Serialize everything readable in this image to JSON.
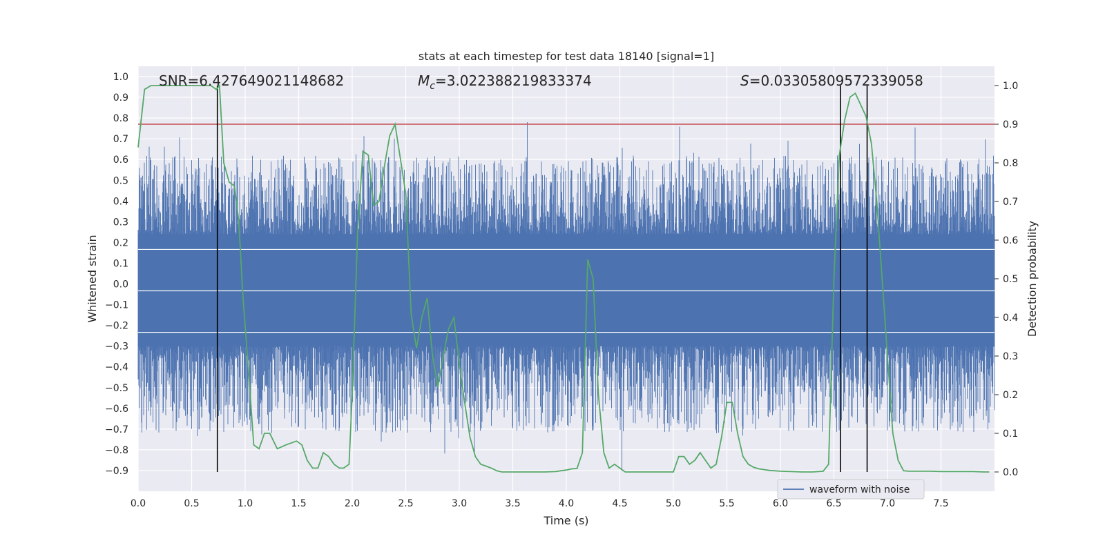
{
  "chart_data": {
    "type": "line",
    "title": "stats at each timestep for test data 18140 [signal=1]",
    "xlabel": "Time (s)",
    "ylabel": "Whitened strain",
    "y2label": "Detection probability",
    "xlim": [
      0.0,
      8.0
    ],
    "ylim": [
      -1.0,
      1.05
    ],
    "y2lim": [
      -0.05,
      1.05
    ],
    "grid": true,
    "legend_position": "bottom-right",
    "x_ticks": [
      0.0,
      0.5,
      1.0,
      1.5,
      2.0,
      2.5,
      3.0,
      3.5,
      4.0,
      4.5,
      5.0,
      5.5,
      6.0,
      6.5,
      7.0,
      7.5
    ],
    "x_tick_labels": [
      "0.0",
      "0.5",
      "1.0",
      "1.5",
      "2.0",
      "2.5",
      "3.0",
      "3.5",
      "4.0",
      "4.5",
      "5.0",
      "5.5",
      "6.0",
      "6.5",
      "7.0",
      "7.5"
    ],
    "y_ticks": [
      -0.9,
      -0.8,
      -0.7,
      -0.6,
      -0.5,
      -0.4,
      -0.3,
      -0.2,
      -0.1,
      0.0,
      0.1,
      0.2,
      0.3,
      0.4,
      0.5,
      0.6,
      0.7,
      0.8,
      0.9,
      1.0
    ],
    "y_tick_labels": [
      "−0.9",
      "−0.8",
      "−0.7",
      "−0.6",
      "−0.5",
      "−0.4",
      "−0.3",
      "−0.2",
      "−0.1",
      "0.0",
      "0.1",
      "0.2",
      "0.3",
      "0.4",
      "0.5",
      "0.6",
      "0.7",
      "0.8",
      "0.9",
      "1.0"
    ],
    "y2_ticks": [
      0.0,
      0.1,
      0.2,
      0.3,
      0.4,
      0.5,
      0.6,
      0.7,
      0.8,
      0.9,
      1.0
    ],
    "y2_tick_labels": [
      "0.0",
      "0.1",
      "0.2",
      "0.3",
      "0.4",
      "0.5",
      "0.6",
      "0.7",
      "0.8",
      "0.9",
      "1.0"
    ],
    "annotations": {
      "snr": "SNR=6.427649021148682",
      "mc_symbol": "M",
      "mc_sub": "c",
      "mc_value": "=3.022388219833374",
      "s_symbol": "S",
      "s_value": "=0.03305809572339058"
    },
    "threshold": {
      "value": 0.9,
      "axis": "y2",
      "color": "#c44e52"
    },
    "vertical_lines": [
      0.74,
      6.56,
      6.81
    ],
    "series": [
      {
        "name": "waveform with noise",
        "axis": "y",
        "color": "#4c72b0",
        "description_only": false,
        "sample_rate": 2048,
        "duration": 8.0,
        "amplitude_envelope": [
          0.45,
          -0.55
        ]
      },
      {
        "axis": "y2",
        "color": "#55a868",
        "x": [
          0.0,
          0.06,
          0.12,
          0.18,
          0.25,
          0.35,
          0.45,
          0.55,
          0.62,
          0.68,
          0.73,
          0.76,
          0.8,
          0.85,
          0.9,
          0.94,
          0.98,
          1.03,
          1.08,
          1.13,
          1.18,
          1.23,
          1.3,
          1.38,
          1.48,
          1.53,
          1.58,
          1.63,
          1.68,
          1.73,
          1.78,
          1.83,
          1.88,
          1.92,
          1.97,
          2.0,
          2.05,
          2.1,
          2.15,
          2.2,
          2.25,
          2.3,
          2.35,
          2.4,
          2.45,
          2.5,
          2.55,
          2.6,
          2.65,
          2.7,
          2.75,
          2.8,
          2.85,
          2.9,
          2.95,
          3.0,
          3.05,
          3.1,
          3.15,
          3.2,
          3.25,
          3.3,
          3.35,
          3.4,
          3.5,
          3.6,
          3.7,
          3.8,
          3.9,
          4.0,
          4.05,
          4.1,
          4.15,
          4.2,
          4.25,
          4.3,
          4.35,
          4.4,
          4.45,
          4.5,
          4.55,
          4.6,
          4.7,
          4.8,
          4.9,
          5.0,
          5.05,
          5.1,
          5.15,
          5.2,
          5.25,
          5.3,
          5.35,
          5.4,
          5.45,
          5.5,
          5.55,
          5.6,
          5.65,
          5.7,
          5.75,
          5.8,
          5.9,
          6.0,
          6.1,
          6.2,
          6.3,
          6.4,
          6.45,
          6.5,
          6.55,
          6.6,
          6.65,
          6.7,
          6.75,
          6.8,
          6.85,
          6.9,
          6.95,
          7.0,
          7.05,
          7.1,
          7.15,
          7.2,
          7.3,
          7.4,
          7.5,
          7.6,
          7.7,
          7.8,
          7.9,
          7.95
        ],
        "values": [
          0.84,
          0.99,
          1.0,
          1.0,
          1.0,
          1.0,
          1.0,
          1.0,
          1.0,
          1.0,
          0.99,
          1.0,
          0.8,
          0.75,
          0.74,
          0.65,
          0.45,
          0.27,
          0.07,
          0.06,
          0.1,
          0.1,
          0.06,
          0.07,
          0.08,
          0.07,
          0.03,
          0.01,
          0.01,
          0.05,
          0.04,
          0.02,
          0.01,
          0.01,
          0.02,
          0.2,
          0.62,
          0.83,
          0.82,
          0.69,
          0.7,
          0.79,
          0.87,
          0.9,
          0.81,
          0.72,
          0.41,
          0.32,
          0.4,
          0.45,
          0.3,
          0.22,
          0.3,
          0.37,
          0.4,
          0.28,
          0.18,
          0.09,
          0.04,
          0.02,
          0.015,
          0.01,
          0.003,
          0.0,
          0.0,
          0.0,
          0.0,
          0.0,
          0.001,
          0.005,
          0.008,
          0.009,
          0.05,
          0.55,
          0.5,
          0.2,
          0.05,
          0.01,
          0.02,
          0.01,
          0.0,
          0.0,
          0.0,
          0.0,
          0.0,
          0.0,
          0.04,
          0.04,
          0.02,
          0.03,
          0.05,
          0.03,
          0.01,
          0.02,
          0.09,
          0.18,
          0.18,
          0.1,
          0.04,
          0.02,
          0.012,
          0.008,
          0.004,
          0.002,
          0.001,
          0.0,
          0.0,
          0.002,
          0.02,
          0.5,
          0.82,
          0.91,
          0.97,
          0.98,
          0.95,
          0.92,
          0.85,
          0.7,
          0.5,
          0.3,
          0.1,
          0.03,
          0.003,
          0.002,
          0.002,
          0.002,
          0.001,
          0.001,
          0.001,
          0.001,
          0.0,
          0.0
        ]
      }
    ]
  }
}
